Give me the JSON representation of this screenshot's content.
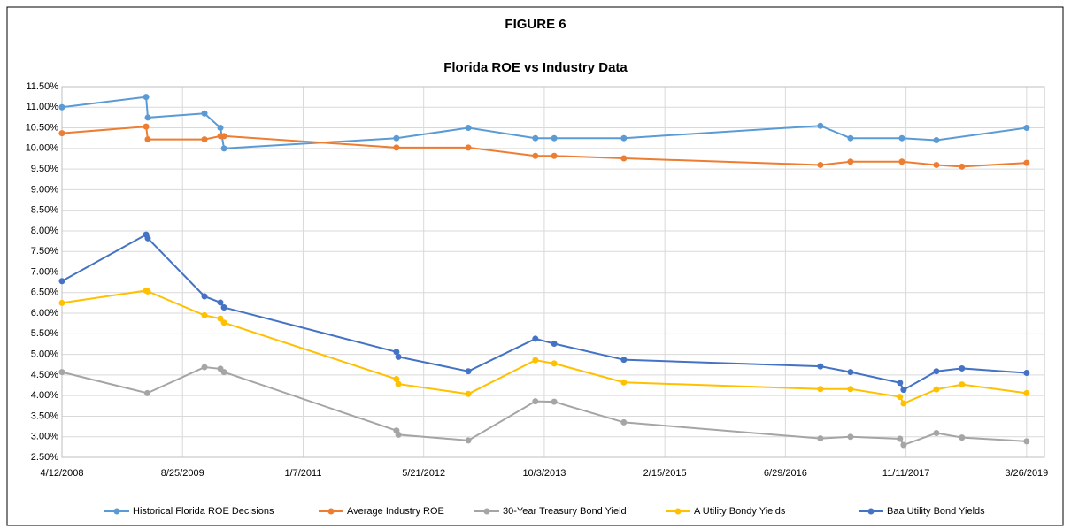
{
  "chart_data": {
    "type": "line",
    "title": "FIGURE 6",
    "subtitle": "Florida ROE vs Industry Data",
    "xlim": [
      "2008-04-12",
      "2019-06-08"
    ],
    "xticks": [
      {
        "value": "2008-04-12",
        "label": "4/12/2008"
      },
      {
        "value": "2009-08-25",
        "label": "8/25/2009"
      },
      {
        "value": "2011-01-07",
        "label": "1/7/2011"
      },
      {
        "value": "2012-05-21",
        "label": "5/21/2012"
      },
      {
        "value": "2013-10-03",
        "label": "10/3/2013"
      },
      {
        "value": "2015-02-15",
        "label": "2/15/2015"
      },
      {
        "value": "2016-06-29",
        "label": "6/29/2016"
      },
      {
        "value": "2017-11-11",
        "label": "11/11/2017"
      },
      {
        "value": "2019-03-26",
        "label": "3/26/2019"
      }
    ],
    "ylim": [
      2.5,
      11.5
    ],
    "yticks": [
      {
        "value": 2.5,
        "label": "2.50%"
      },
      {
        "value": 3.0,
        "label": "3.00%"
      },
      {
        "value": 3.5,
        "label": "3.50%"
      },
      {
        "value": 4.0,
        "label": "4.00%"
      },
      {
        "value": 4.5,
        "label": "4.50%"
      },
      {
        "value": 5.0,
        "label": "5.00%"
      },
      {
        "value": 5.5,
        "label": "5.50%"
      },
      {
        "value": 6.0,
        "label": "6.00%"
      },
      {
        "value": 6.5,
        "label": "6.50%"
      },
      {
        "value": 7.0,
        "label": "7.00%"
      },
      {
        "value": 7.5,
        "label": "7.50%"
      },
      {
        "value": 8.0,
        "label": "8.00%"
      },
      {
        "value": 8.5,
        "label": "8.50%"
      },
      {
        "value": 9.0,
        "label": "9.00%"
      },
      {
        "value": 9.5,
        "label": "9.50%"
      },
      {
        "value": 10.0,
        "label": "10.00%"
      },
      {
        "value": 10.5,
        "label": "10.50%"
      },
      {
        "value": 11.0,
        "label": "11.00%"
      },
      {
        "value": 11.5,
        "label": "11.50%"
      }
    ],
    "grid": true,
    "legend": "bottom",
    "series": [
      {
        "name": "Historical Florida ROE Decisions",
        "color": "#5b9bd5",
        "x": [
          "2008-04-12",
          "2009-03-27",
          "2009-04-03",
          "2009-11-24",
          "2010-01-29",
          "2010-02-13",
          "2012-01-29",
          "2012-11-22",
          "2013-08-27",
          "2013-11-13",
          "2014-08-29",
          "2016-11-21",
          "2017-03-26",
          "2017-10-25",
          "2018-03-17",
          "2019-03-26"
        ],
        "values": [
          11.0,
          11.25,
          10.75,
          10.85,
          10.5,
          10.0,
          10.25,
          10.5,
          10.25,
          10.25,
          10.25,
          10.55,
          10.25,
          10.25,
          10.2,
          10.5
        ]
      },
      {
        "name": "Average Industry ROE",
        "color": "#ed7d31",
        "x": [
          "2008-04-12",
          "2009-03-27",
          "2009-04-03",
          "2009-11-24",
          "2010-01-29",
          "2010-02-13",
          "2012-01-29",
          "2012-11-22",
          "2013-08-27",
          "2013-11-13",
          "2014-08-29",
          "2016-11-21",
          "2017-03-26",
          "2017-10-25",
          "2018-03-17",
          "2018-07-01",
          "2019-03-26"
        ],
        "values": [
          10.37,
          10.53,
          10.22,
          10.22,
          10.3,
          10.3,
          10.02,
          10.02,
          9.82,
          9.82,
          9.76,
          9.6,
          9.68,
          9.68,
          9.6,
          9.56,
          9.65
        ]
      },
      {
        "name": "30-Year Treasury Bond Yield",
        "color": "#a5a5a5",
        "x": [
          "2008-04-12",
          "2009-04-01",
          "2009-11-24",
          "2010-01-29",
          "2010-02-13",
          "2012-01-29",
          "2012-02-06",
          "2012-11-22",
          "2013-08-27",
          "2013-11-13",
          "2014-08-29",
          "2016-11-21",
          "2017-03-26",
          "2017-10-17",
          "2017-11-01",
          "2018-03-17",
          "2018-07-01",
          "2019-03-26"
        ],
        "values": [
          4.57,
          4.06,
          4.69,
          4.65,
          4.57,
          3.15,
          3.05,
          2.91,
          3.86,
          3.85,
          3.35,
          2.96,
          3.0,
          2.95,
          2.8,
          3.09,
          2.98,
          2.89
        ]
      },
      {
        "name": "A Utility Bondy Yields",
        "color": "#ffc000",
        "x": [
          "2008-04-12",
          "2009-03-27",
          "2009-04-03",
          "2009-11-24",
          "2010-01-29",
          "2010-02-13",
          "2012-01-29",
          "2012-02-06",
          "2012-11-22",
          "2013-08-27",
          "2013-11-13",
          "2014-08-29",
          "2016-11-21",
          "2017-03-26",
          "2017-10-17",
          "2017-11-01",
          "2018-03-17",
          "2018-07-01",
          "2019-03-26"
        ],
        "values": [
          6.25,
          6.55,
          6.53,
          5.95,
          5.87,
          5.77,
          4.4,
          4.28,
          4.04,
          4.86,
          4.78,
          4.32,
          4.16,
          4.16,
          3.97,
          3.81,
          4.15,
          4.27,
          4.06
        ]
      },
      {
        "name": "Baa Utility Bond Yields",
        "color": "#4472c4",
        "x": [
          "2008-04-12",
          "2009-03-27",
          "2009-04-03",
          "2009-11-24",
          "2010-01-29",
          "2010-02-13",
          "2012-01-29",
          "2012-02-06",
          "2012-11-22",
          "2013-08-27",
          "2013-11-13",
          "2014-08-29",
          "2016-11-21",
          "2017-03-26",
          "2017-10-17",
          "2017-11-01",
          "2018-03-17",
          "2018-07-01",
          "2019-03-26"
        ],
        "values": [
          6.78,
          7.91,
          7.82,
          6.41,
          6.26,
          6.14,
          5.06,
          4.94,
          4.59,
          5.38,
          5.26,
          4.87,
          4.71,
          4.57,
          4.31,
          4.14,
          4.59,
          4.66,
          4.55
        ]
      }
    ]
  }
}
